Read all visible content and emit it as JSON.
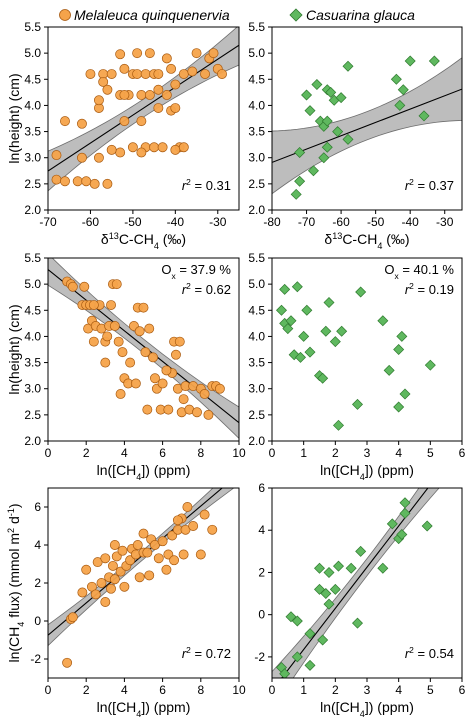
{
  "colors": {
    "melaleuca": "#f5a34a",
    "melaleuca_edge": "#a85a10",
    "casuarina": "#5fb85f",
    "casuarina_edge": "#2f7a2f",
    "band": "#bdbdbd",
    "band_edge": "#6e6e6e",
    "line": "#000000"
  },
  "legend": [
    {
      "label": "Melaleuca quinquenervia",
      "marker": "circle",
      "color": "melaleuca"
    },
    {
      "label": "Casuarina glauca",
      "marker": "diamond",
      "color": "casuarina"
    }
  ],
  "chart_data": [
    {
      "type": "scatter",
      "panel": "top-left",
      "species": "melaleuca",
      "marker": "circle",
      "xlabel": "δ13C-CH4 (‰)",
      "ylabel": "ln(height) (cm)",
      "xlim": [
        -70,
        -25
      ],
      "xticks": [
        -70,
        -60,
        -50,
        -40,
        -30
      ],
      "ylim": [
        2.0,
        5.5
      ],
      "yticks": [
        2.0,
        2.5,
        3.0,
        3.5,
        4.0,
        4.5,
        5.0,
        5.5
      ],
      "stat": "r² = 0.31",
      "ox": "",
      "fit": {
        "slope": 0.0535,
        "intercept": 6.49,
        "ci": 0.38
      },
      "points": [
        [
          -68,
          3.05
        ],
        [
          -68,
          2.58
        ],
        [
          -66,
          2.55
        ],
        [
          -63,
          2.55
        ],
        [
          -62,
          3.0
        ],
        [
          -61,
          2.55
        ],
        [
          -59,
          2.5
        ],
        [
          -58,
          3.0
        ],
        [
          -58,
          3.95
        ],
        [
          -58,
          4.1
        ],
        [
          -57,
          4.6
        ],
        [
          -57,
          4.45
        ],
        [
          -56,
          2.5
        ],
        [
          -56,
          4.3
        ],
        [
          -55,
          4.6
        ],
        [
          -53,
          4.2
        ],
        [
          -53,
          3.1
        ],
        [
          -53,
          4.98
        ],
        [
          -52,
          4.7
        ],
        [
          -52,
          3.7
        ],
        [
          -51,
          4.2
        ],
        [
          -50,
          4.6
        ],
        [
          -50,
          3.2
        ],
        [
          -49,
          5.0
        ],
        [
          -49,
          4.6
        ],
        [
          -48,
          4.2
        ],
        [
          -48,
          3.7
        ],
        [
          -47,
          3.2
        ],
        [
          -47,
          4.6
        ],
        [
          -46,
          5.0
        ],
        [
          -45,
          4.6
        ],
        [
          -45,
          3.2
        ],
        [
          -44,
          3.95
        ],
        [
          -44,
          4.3
        ],
        [
          -43,
          3.2
        ],
        [
          -42,
          4.9
        ],
        [
          -42,
          4.2
        ],
        [
          -41,
          3.9
        ],
        [
          -41,
          4.7
        ],
        [
          -40,
          3.95
        ],
        [
          -40,
          4.4
        ],
        [
          -39,
          3.2
        ],
        [
          -38,
          4.6
        ],
        [
          -36,
          4.65
        ],
        [
          -35,
          5.0
        ],
        [
          -33,
          4.6
        ],
        [
          -32,
          4.9
        ],
        [
          -31,
          5.0
        ],
        [
          -30,
          4.7
        ],
        [
          -29,
          4.6
        ],
        [
          -66,
          3.7
        ],
        [
          -62,
          3.65
        ],
        [
          -60,
          4.6
        ],
        [
          -55,
          3.15
        ],
        [
          -52,
          4.2
        ],
        [
          -48,
          3.1
        ],
        [
          -46,
          4.2
        ],
        [
          -44,
          4.6
        ],
        [
          -40,
          3.15
        ],
        [
          -38,
          3.2
        ]
      ]
    },
    {
      "type": "scatter",
      "panel": "top-right",
      "species": "casuarina",
      "marker": "diamond",
      "xlabel": "δ13C-CH4 (‰)",
      "ylabel": "",
      "xlim": [
        -80,
        -25
      ],
      "xticks": [
        -80,
        -70,
        -60,
        -50,
        -40,
        -30
      ],
      "ylim": [
        2.0,
        5.5
      ],
      "yticks": [
        2.0,
        2.5,
        3.0,
        3.5,
        4.0,
        4.5,
        5.0,
        5.5
      ],
      "stat": "r² = 0.37",
      "ox": "",
      "fit": {
        "slope": 0.0255,
        "intercept": 4.95,
        "ci": 0.6
      },
      "points": [
        [
          -73,
          2.3
        ],
        [
          -72,
          3.1
        ],
        [
          -72,
          2.55
        ],
        [
          -70,
          4.2
        ],
        [
          -69,
          3.9
        ],
        [
          -68,
          2.75
        ],
        [
          -67,
          4.4
        ],
        [
          -66,
          3.7
        ],
        [
          -65,
          3.0
        ],
        [
          -65,
          3.6
        ],
        [
          -64,
          3.7
        ],
        [
          -64,
          4.3
        ],
        [
          -64,
          3.2
        ],
        [
          -63,
          4.25
        ],
        [
          -62,
          4.1
        ],
        [
          -61,
          3.5
        ],
        [
          -60,
          4.15
        ],
        [
          -58,
          3.35
        ],
        [
          -58,
          4.75
        ],
        [
          -44,
          4.5
        ],
        [
          -43,
          4.0
        ],
        [
          -42,
          4.3
        ],
        [
          -40,
          4.85
        ],
        [
          -36,
          3.8
        ],
        [
          -33,
          4.85
        ]
      ]
    },
    {
      "type": "scatter",
      "panel": "middle-left",
      "species": "melaleuca",
      "marker": "circle",
      "xlabel": "ln([CH4]) (ppm)",
      "ylabel": "ln(height) (cm)",
      "xlim": [
        0,
        10
      ],
      "xticks": [
        0,
        2,
        4,
        6,
        8,
        10
      ],
      "ylim": [
        2.0,
        5.5
      ],
      "yticks": [
        2.0,
        2.5,
        3.0,
        3.5,
        4.0,
        4.5,
        5.0,
        5.5
      ],
      "stat": "r² = 0.62",
      "ox": "Ox = 37.9 %",
      "fit": {
        "slope": -0.293,
        "intercept": 5.28,
        "ci": 0.3
      },
      "points": [
        [
          1.0,
          5.05
        ],
        [
          1.2,
          5.0
        ],
        [
          1.3,
          4.95
        ],
        [
          1.8,
          4.6
        ],
        [
          1.9,
          4.95
        ],
        [
          2.0,
          4.6
        ],
        [
          2.1,
          4.15
        ],
        [
          2.2,
          4.6
        ],
        [
          2.3,
          4.3
        ],
        [
          2.4,
          3.9
        ],
        [
          2.5,
          4.2
        ],
        [
          2.7,
          4.6
        ],
        [
          2.8,
          4.15
        ],
        [
          3.0,
          3.9
        ],
        [
          3.1,
          4.0
        ],
        [
          3.2,
          4.2
        ],
        [
          3.3,
          4.6
        ],
        [
          3.4,
          5.0
        ],
        [
          3.5,
          4.2
        ],
        [
          3.6,
          5.0
        ],
        [
          3.7,
          3.9
        ],
        [
          3.8,
          2.9
        ],
        [
          3.9,
          3.7
        ],
        [
          4.0,
          3.2
        ],
        [
          4.2,
          3.1
        ],
        [
          4.3,
          3.5
        ],
        [
          4.5,
          4.2
        ],
        [
          4.7,
          4.55
        ],
        [
          4.8,
          4.1
        ],
        [
          5.0,
          4.55
        ],
        [
          5.1,
          3.7
        ],
        [
          5.2,
          2.6
        ],
        [
          5.3,
          4.15
        ],
        [
          5.5,
          3.6
        ],
        [
          5.6,
          3.2
        ],
        [
          5.7,
          3.0
        ],
        [
          5.9,
          2.6
        ],
        [
          6.0,
          3.1
        ],
        [
          6.3,
          2.6
        ],
        [
          6.5,
          3.3
        ],
        [
          6.6,
          3.9
        ],
        [
          6.7,
          3.65
        ],
        [
          6.8,
          3.0
        ],
        [
          6.9,
          3.9
        ],
        [
          7.0,
          2.55
        ],
        [
          7.2,
          3.05
        ],
        [
          7.4,
          2.6
        ],
        [
          7.6,
          3.05
        ],
        [
          7.8,
          2.55
        ],
        [
          8.0,
          3.0
        ],
        [
          8.2,
          2.9
        ],
        [
          8.4,
          2.5
        ],
        [
          8.6,
          3.05
        ],
        [
          8.8,
          3.05
        ],
        [
          9.0,
          3.0
        ],
        [
          3.0,
          3.5
        ],
        [
          2.4,
          4.6
        ],
        [
          4.6,
          3.1
        ],
        [
          6.2,
          3.35
        ],
        [
          7.1,
          2.8
        ]
      ]
    },
    {
      "type": "scatter",
      "panel": "middle-right",
      "species": "casuarina",
      "marker": "diamond",
      "xlabel": "ln([CH4]) (ppm)",
      "ylabel": "",
      "xlim": [
        0,
        6
      ],
      "xticks": [
        0,
        1,
        2,
        3,
        4,
        5,
        6
      ],
      "ylim": [
        2.0,
        5.5
      ],
      "yticks": [
        2.0,
        2.5,
        3.0,
        3.5,
        4.0,
        4.5,
        5.0,
        5.5
      ],
      "stat": "r² = 0.19",
      "ox": "Ox = 40.1 %",
      "fit": null,
      "points": [
        [
          0.3,
          4.5
        ],
        [
          0.4,
          4.25
        ],
        [
          0.4,
          4.9
        ],
        [
          0.5,
          4.15
        ],
        [
          0.6,
          4.3
        ],
        [
          0.7,
          3.65
        ],
        [
          0.8,
          4.95
        ],
        [
          0.9,
          3.6
        ],
        [
          1.0,
          4.0
        ],
        [
          1.1,
          4.5
        ],
        [
          1.5,
          3.25
        ],
        [
          1.6,
          3.2
        ],
        [
          1.7,
          4.1
        ],
        [
          1.8,
          4.65
        ],
        [
          2.0,
          3.9
        ],
        [
          2.1,
          2.3
        ],
        [
          2.2,
          4.1
        ],
        [
          2.7,
          2.7
        ],
        [
          2.8,
          4.85
        ],
        [
          3.5,
          4.3
        ],
        [
          3.7,
          3.35
        ],
        [
          4.0,
          3.75
        ],
        [
          4.1,
          4.0
        ],
        [
          4.2,
          2.9
        ],
        [
          4.0,
          2.65
        ],
        [
          5.0,
          3.45
        ],
        [
          1.2,
          3.7
        ]
      ]
    },
    {
      "type": "scatter",
      "panel": "bottom-left",
      "species": "melaleuca",
      "marker": "circle",
      "xlabel": "ln([CH4]) (ppm)",
      "ylabel": "ln(CH4 flux) (mmol m2 d-1)",
      "xlim": [
        0,
        10
      ],
      "xticks": [
        0,
        2,
        4,
        6,
        8,
        10
      ],
      "ylim": [
        -3,
        7
      ],
      "yticks": [
        -2,
        0,
        2,
        4,
        6
      ],
      "stat": "r² = 0.72",
      "ox": "",
      "fit": {
        "slope": 0.85,
        "intercept": -0.75,
        "ci": 0.55
      },
      "points": [
        [
          1.0,
          -2.2
        ],
        [
          1.2,
          0.1
        ],
        [
          1.3,
          0.2
        ],
        [
          1.8,
          1.5
        ],
        [
          2.0,
          2.7
        ],
        [
          2.3,
          1.8
        ],
        [
          2.5,
          1.4
        ],
        [
          2.6,
          3.1
        ],
        [
          2.8,
          2.0
        ],
        [
          3.0,
          1.0
        ],
        [
          3.0,
          3.3
        ],
        [
          3.2,
          2.3
        ],
        [
          3.3,
          1.7
        ],
        [
          3.4,
          2.9
        ],
        [
          3.5,
          4.0
        ],
        [
          3.6,
          3.4
        ],
        [
          3.8,
          2.6
        ],
        [
          3.9,
          3.7
        ],
        [
          4.0,
          1.8
        ],
        [
          4.1,
          2.9
        ],
        [
          4.3,
          3.2
        ],
        [
          4.4,
          3.8
        ],
        [
          4.6,
          3.5
        ],
        [
          4.7,
          4.0
        ],
        [
          4.8,
          2.3
        ],
        [
          5.0,
          3.6
        ],
        [
          5.2,
          3.6
        ],
        [
          5.3,
          2.4
        ],
        [
          5.4,
          4.3
        ],
        [
          5.6,
          4.0
        ],
        [
          5.8,
          3.3
        ],
        [
          6.0,
          4.2
        ],
        [
          6.2,
          2.7
        ],
        [
          6.3,
          3.5
        ],
        [
          6.5,
          4.5
        ],
        [
          6.6,
          3.2
        ],
        [
          6.8,
          4.8
        ],
        [
          7.0,
          5.4
        ],
        [
          7.1,
          3.5
        ],
        [
          7.2,
          4.8
        ],
        [
          7.3,
          6.0
        ],
        [
          7.6,
          5.0
        ],
        [
          8.0,
          3.5
        ],
        [
          8.2,
          5.6
        ],
        [
          8.6,
          4.8
        ],
        [
          5.0,
          4.6
        ],
        [
          6.8,
          5.3
        ],
        [
          3.5,
          2.2
        ]
      ]
    },
    {
      "type": "scatter",
      "panel": "bottom-right",
      "species": "casuarina",
      "marker": "diamond",
      "xlabel": "ln([CH4]) (ppm)",
      "ylabel": "",
      "xlim": [
        0,
        6
      ],
      "xticks": [
        0,
        1,
        2,
        3,
        4,
        5,
        6
      ],
      "ylim": [
        -3,
        6
      ],
      "yticks": [
        -2,
        0,
        2,
        4,
        6
      ],
      "stat": "r² = 0.54",
      "ox": "",
      "fit": {
        "slope": 1.95,
        "intercept": -3.6,
        "ci": 0.9
      },
      "points": [
        [
          0.3,
          -2.5
        ],
        [
          0.4,
          -2.8
        ],
        [
          0.6,
          -0.1
        ],
        [
          0.8,
          -0.3
        ],
        [
          1.2,
          -2.4
        ],
        [
          1.5,
          2.2
        ],
        [
          1.5,
          1.2
        ],
        [
          1.6,
          -1.2
        ],
        [
          1.7,
          1.0
        ],
        [
          1.8,
          2.0
        ],
        [
          1.8,
          0.5
        ],
        [
          2.0,
          1.2
        ],
        [
          2.1,
          2.3
        ],
        [
          2.5,
          2.2
        ],
        [
          2.7,
          -0.4
        ],
        [
          2.8,
          3.0
        ],
        [
          3.5,
          2.2
        ],
        [
          3.8,
          4.3
        ],
        [
          4.0,
          3.6
        ],
        [
          4.1,
          3.8
        ],
        [
          4.2,
          5.3
        ],
        [
          4.2,
          4.8
        ],
        [
          4.9,
          4.2
        ],
        [
          1.2,
          -0.9
        ],
        [
          0.8,
          -2.0
        ]
      ]
    }
  ]
}
